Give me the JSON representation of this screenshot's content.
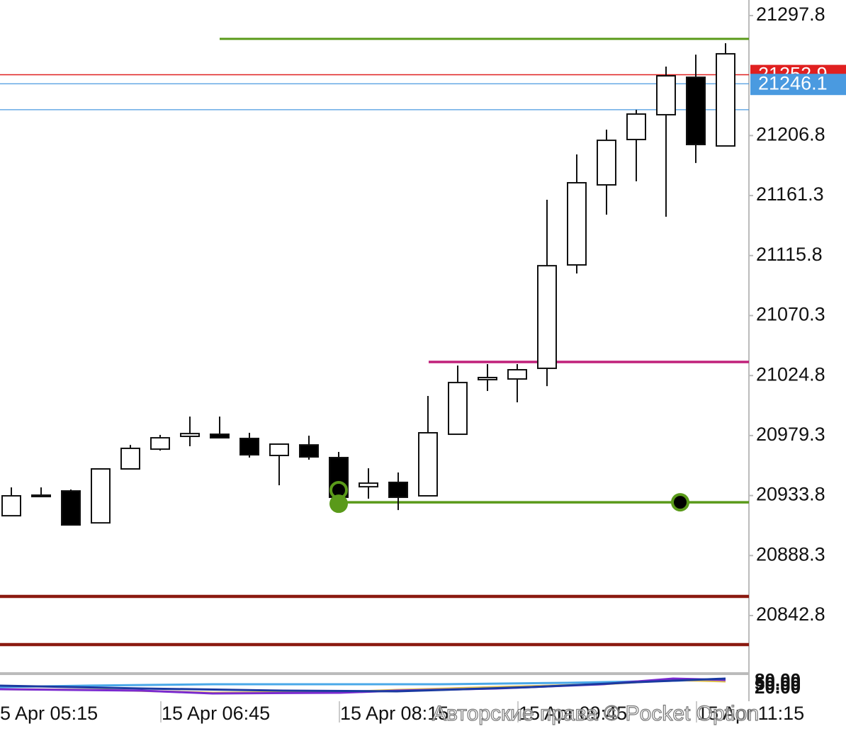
{
  "chart_data": {
    "type": "candlestick",
    "ylim": [
      20799.3,
      21309.6
    ],
    "yticks": [
      21297.8,
      21206.8,
      21161.3,
      21115.8,
      21070.3,
      21024.8,
      20979.3,
      20933.8,
      20888.3,
      20842.8
    ],
    "x_labels": [
      "5 Apr 05:15",
      "15 Apr 06:45",
      "15 Apr 08:15",
      "15 Apr 09:45",
      "15 Apr 11:15"
    ],
    "open": [
      20918.5,
      20934.1,
      20937.3,
      20913.1,
      20954.0,
      20969.0,
      20978.7,
      20980.3,
      20977.1,
      20964.2,
      20972.2,
      20962.6,
      20940.5,
      20943.8,
      20933.6,
      20980.3,
      21021.7,
      21022.2,
      21030.3,
      21108.7,
      21169.4,
      21203.8,
      21222.6,
      21251.0,
      21198.9
    ],
    "high": [
      20940.0,
      20940.0,
      20938.4,
      20954.0,
      20972.2,
      20979.8,
      20993.7,
      20993.7,
      20981.4,
      20972.8,
      20979.2,
      20966.9,
      20954.5,
      20951.3,
      21009.3,
      21032.4,
      21033.5,
      21033.5,
      21158.1,
      21192.5,
      21211.3,
      21226.3,
      21259.1,
      21268.2,
      21276.8
    ],
    "low": [
      20918.5,
      20934.1,
      20911.5,
      20913.1,
      20954.0,
      20967.9,
      20971.2,
      20977.6,
      20962.6,
      20941.6,
      20961.0,
      20930.9,
      20931.4,
      20922.8,
      20933.6,
      20980.3,
      21013.1,
      21004.5,
      21016.8,
      21102.2,
      21146.8,
      21172.1,
      21145.2,
      21186.0,
      21198.9
    ],
    "close": [
      20933.6,
      20934.1,
      20911.5,
      20954.0,
      20969.6,
      20977.6,
      20980.8,
      20977.6,
      20964.7,
      20972.8,
      20963.1,
      20932.5,
      20943.2,
      20932.5,
      20981.4,
      21019.5,
      21023.3,
      21029.2,
      21108.1,
      21171.0,
      21203.2,
      21223.1,
      21252.1,
      21200.0,
      21268.8
    ],
    "levels": [
      {
        "value": 21280.1,
        "color": "#5a9a1a"
      },
      {
        "value": 21252.9,
        "color": "#e02020",
        "label": "21252.9"
      },
      {
        "value": 21246.1,
        "color": "#4a9ae0",
        "label": "21246.1"
      },
      {
        "value": 21226.4,
        "color": "#4a9ae0"
      },
      {
        "value": 21035.1,
        "color": "#c0207a"
      },
      {
        "value": 20928.7,
        "color": "#5a9a1a"
      },
      {
        "value": 20857.3,
        "color": "#8b1a10"
      },
      {
        "value": 20820.8,
        "color": "#8b1a10"
      }
    ],
    "markers": [
      {
        "value": 20937.9,
        "color": "#5a9a1a"
      },
      {
        "value": 20927.6,
        "color": "#5a9a1a"
      },
      {
        "value": 20928.7,
        "color": "#5a9a1a"
      }
    ],
    "indicator_ticks": [
      "80.00",
      "50.00",
      "20.00"
    ],
    "watermark": "Авторские права © Pocket Option"
  }
}
